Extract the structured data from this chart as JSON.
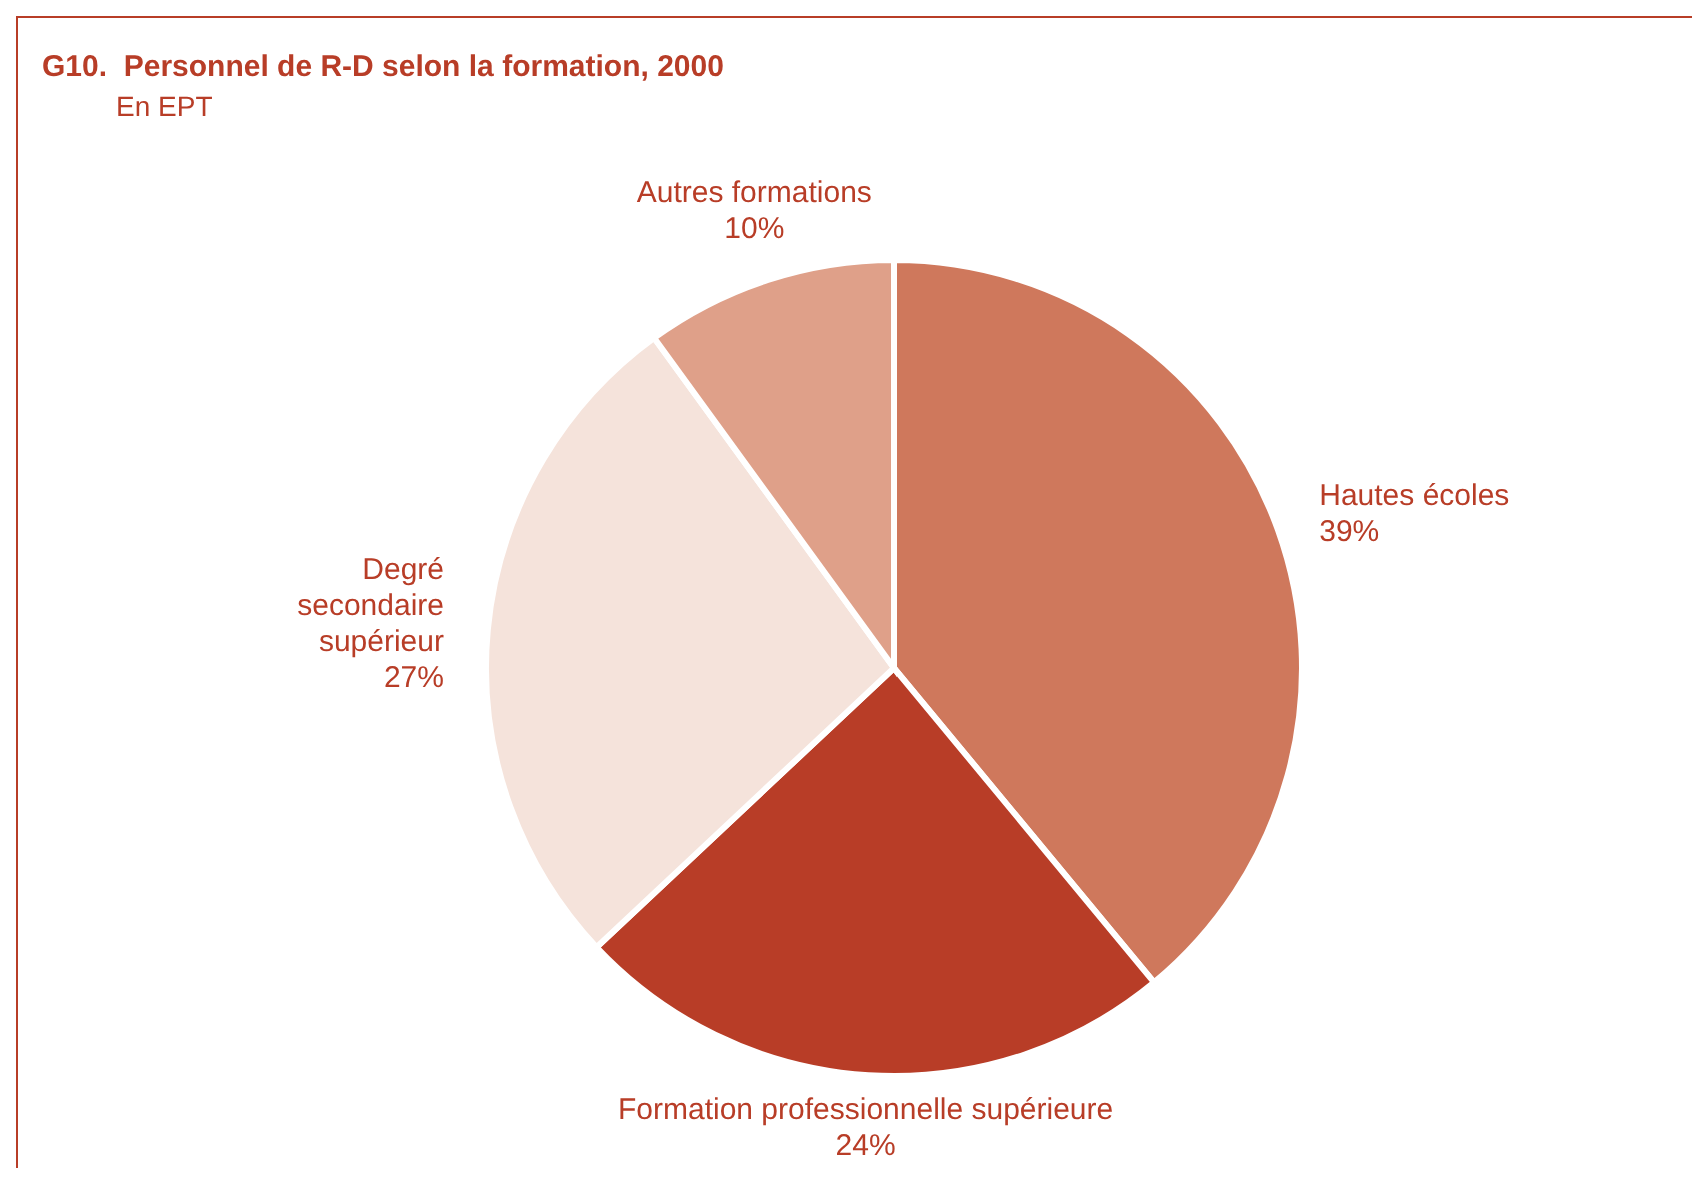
{
  "chart_data": {
    "type": "pie",
    "title": "G10.  Personnel de R-D selon la formation, 2000",
    "subtitle": "En EPT",
    "categories": [
      "Hautes écoles",
      "Formation professionnelle supérieure",
      "Degré secondaire supérieur",
      "Autres formations"
    ],
    "values": [
      39,
      24,
      27,
      10
    ],
    "colors": [
      "#cf785c",
      "#b83d27",
      "#f5e3db",
      "#dfa089"
    ],
    "value_labels": [
      "39%",
      "24%",
      "27%",
      "10%"
    ]
  }
}
